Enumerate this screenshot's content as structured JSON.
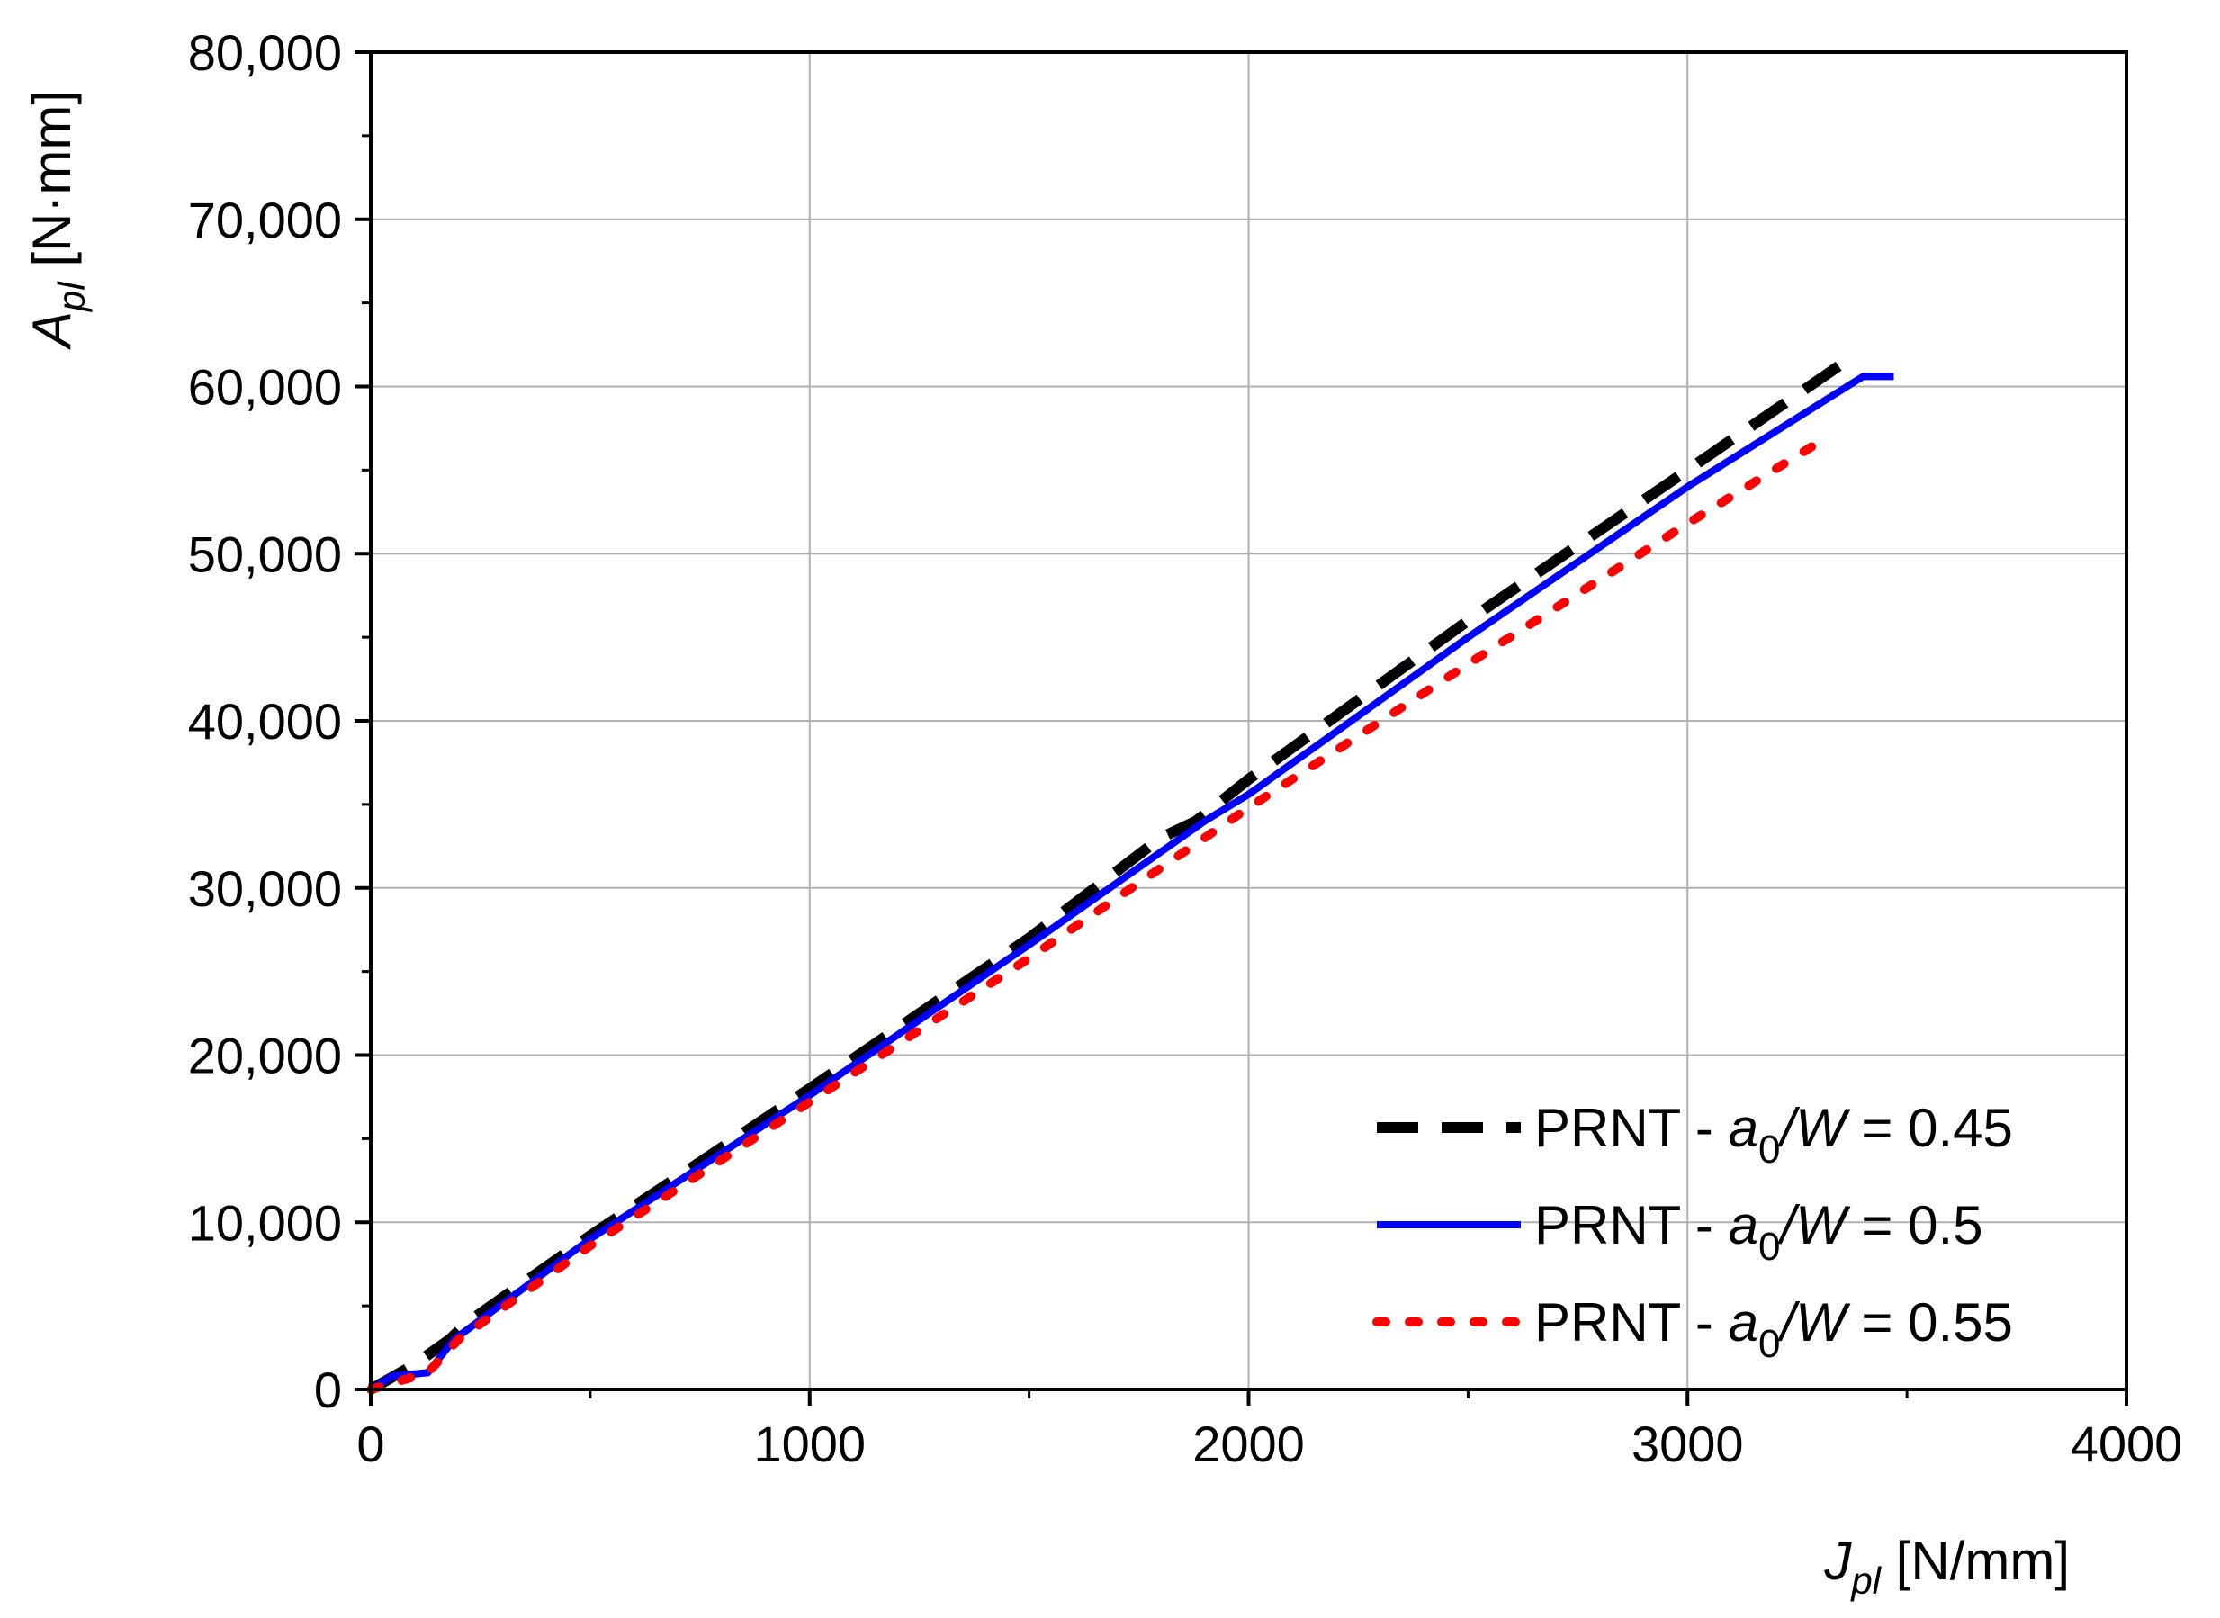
{
  "chart_data": {
    "type": "line",
    "x_axis": {
      "label_main": "J",
      "label_sub": "pl",
      "label_unit": " [N/mm]",
      "range": [
        0,
        4000
      ],
      "ticks": [
        0,
        1000,
        2000,
        3000,
        4000
      ],
      "tick_labels": [
        "0",
        "1000",
        "2000",
        "3000",
        "4000"
      ],
      "minor_step": 500
    },
    "y_axis": {
      "label_main": "A",
      "label_sub": "pl",
      "label_unit": " [N·mm]",
      "range": [
        0,
        80000
      ],
      "ticks": [
        0,
        10000,
        20000,
        30000,
        40000,
        50000,
        60000,
        70000,
        80000
      ],
      "tick_labels": [
        "0",
        "10,000",
        "20,000",
        "30,000",
        "40,000",
        "50,000",
        "60,000",
        "70,000",
        "80,000"
      ],
      "minor_step": 5000
    },
    "grid": true,
    "legend_position": "bottom-right",
    "series": [
      {
        "name": "PRNT - a0/W = 0.45",
        "legend_prefix": "PRNT - ",
        "legend_italic": "a",
        "legend_sub": "0",
        "legend_italic2": "/W",
        "legend_suffix": " = 0.45",
        "color": "#000000",
        "style": "dashed",
        "x": [
          0,
          100,
          180,
          220,
          500,
          1000,
          1500,
          1800,
          1880,
          2000,
          2500,
          3000,
          3360
        ],
        "y": [
          0,
          1500,
          3000,
          4000,
          9200,
          18000,
          27000,
          33000,
          34000,
          36500,
          46000,
          55000,
          61500
        ]
      },
      {
        "name": "PRNT - a0/W = 0.5",
        "legend_prefix": "PRNT - ",
        "legend_italic": "a",
        "legend_sub": "0",
        "legend_italic2": "/W",
        "legend_suffix": " = 0.5",
        "color": "#0000ff",
        "style": "solid",
        "x": [
          0,
          50,
          130,
          190,
          500,
          1000,
          1500,
          1900,
          2000,
          2500,
          3000,
          3400,
          3470
        ],
        "y": [
          0,
          800,
          1000,
          3000,
          9000,
          17600,
          26600,
          34000,
          35600,
          45000,
          54000,
          60600,
          60600
        ]
      },
      {
        "name": "PRNT - a0/W = 0.55",
        "legend_prefix": "PRNT - ",
        "legend_italic": "a",
        "legend_sub": "0",
        "legend_italic2": "/W",
        "legend_suffix": " = 0.55",
        "color": "#ff0000",
        "style": "dotted",
        "x": [
          0,
          130,
          200,
          500,
          1000,
          1500,
          2000,
          2500,
          3000,
          3320
        ],
        "y": [
          0,
          1000,
          3000,
          8600,
          17200,
          25800,
          34800,
          43400,
          51800,
          57000
        ]
      }
    ]
  }
}
